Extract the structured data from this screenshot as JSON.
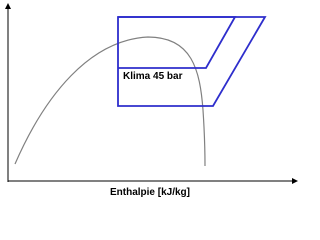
{
  "diagram": {
    "cycle_label": "Klima 45 bar",
    "x_axis_label": "Enthalpie [kJ/kg]"
  }
}
